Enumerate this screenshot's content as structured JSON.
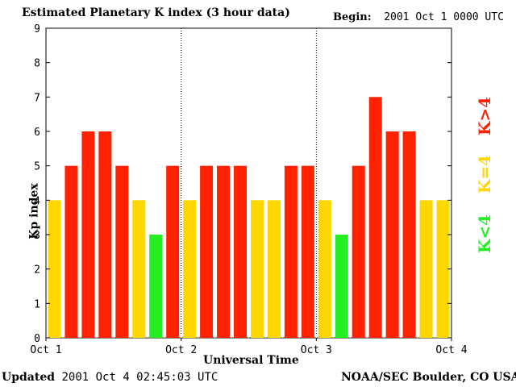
{
  "header": {
    "title": "Estimated Planetary K index (3 hour data)",
    "begin_label": "Begin:",
    "begin_value": "2001 Oct 1 0000 UTC"
  },
  "footer": {
    "updated_label": "Updated",
    "updated_value": "2001 Oct  4 02:45:03 UTC",
    "credit": "NOAA/SEC Boulder, CO USA"
  },
  "legend": {
    "above": "K>4",
    "equal": "K=4",
    "below": "K<4"
  },
  "colors": {
    "above": "#ff2200",
    "equal": "#ffd700",
    "below": "#22ee22",
    "axis": "#000000",
    "day_divider": "#000000"
  },
  "chart_data": {
    "type": "bar",
    "title": "Estimated Planetary K index (3 hour data)",
    "xlabel": "Universal Time",
    "ylabel": "Kp index",
    "ylim": [
      0,
      9
    ],
    "yticks": [
      0,
      1,
      2,
      3,
      4,
      5,
      6,
      7,
      8,
      9
    ],
    "xtick_labels": [
      "Oct 1",
      "Oct 2",
      "Oct 3",
      "Oct 4"
    ],
    "bars_per_day": 8,
    "values": [
      4,
      5,
      6,
      6,
      5,
      4,
      3,
      5,
      4,
      5,
      5,
      5,
      4,
      4,
      5,
      5,
      4,
      3,
      5,
      7,
      6,
      6,
      4,
      4
    ],
    "color_rule": "K>4 red, K=4 yellow, K<4 green"
  }
}
